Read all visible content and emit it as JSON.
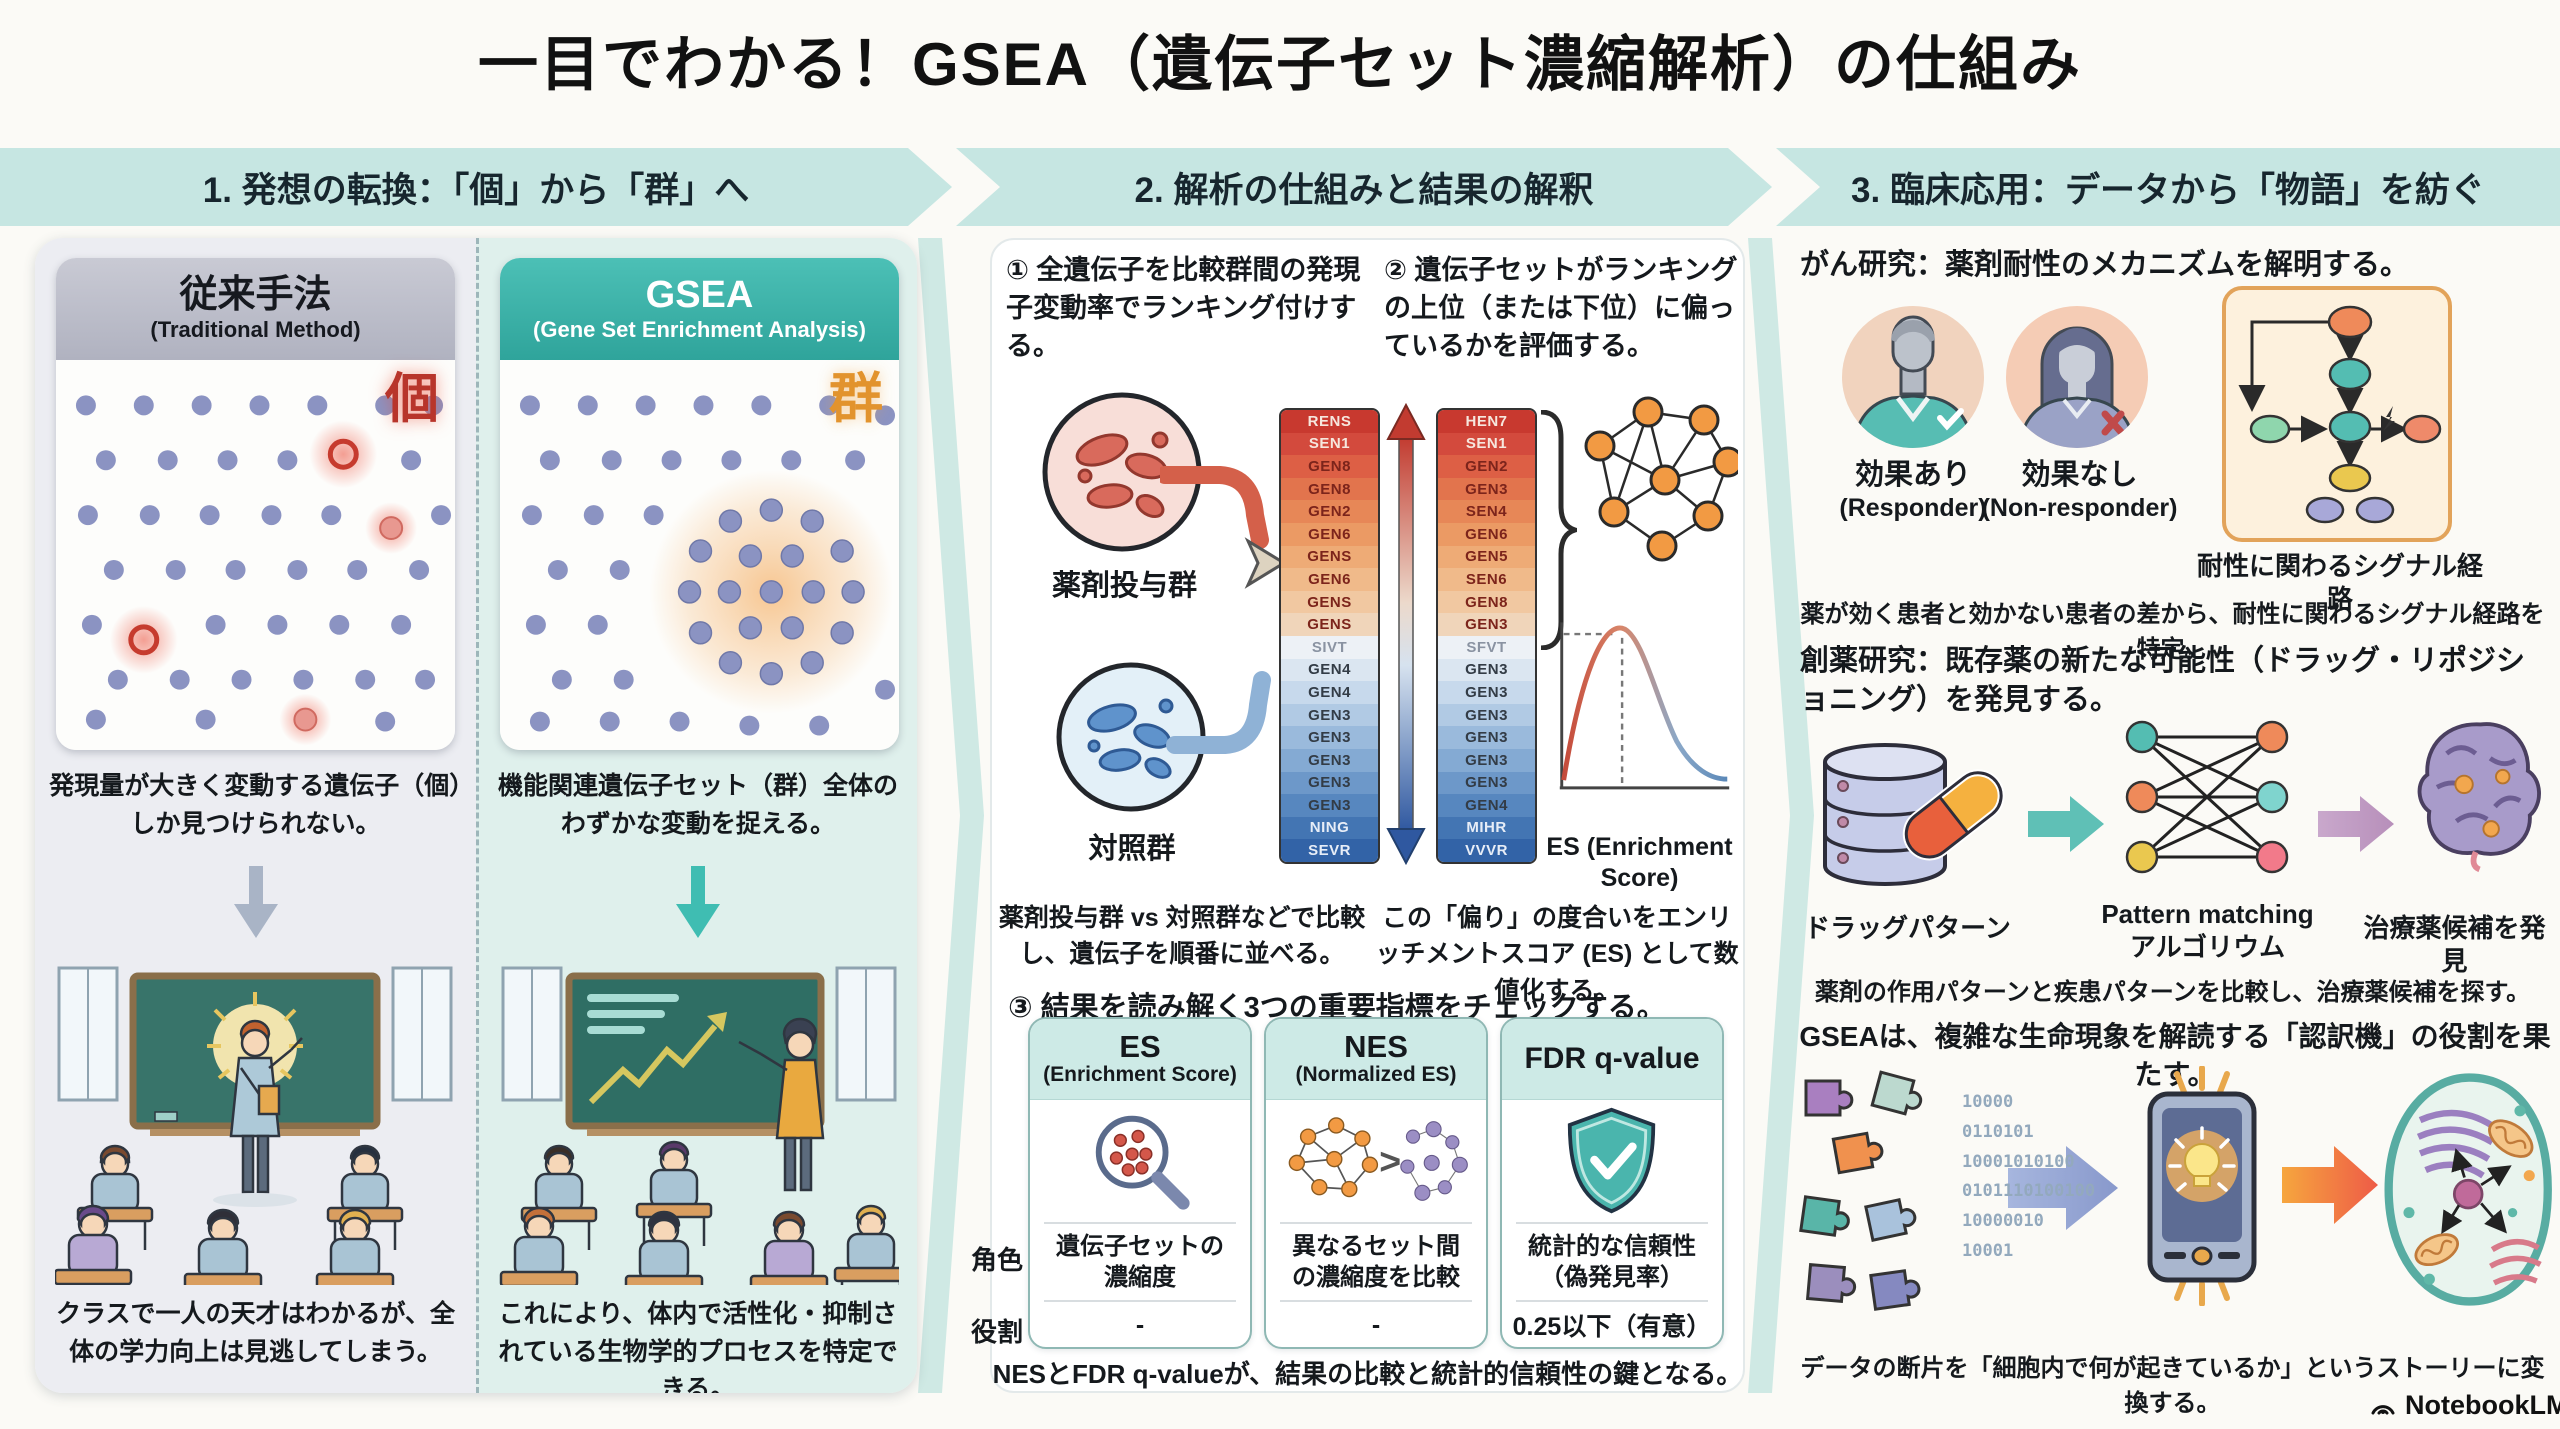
{
  "title": "一目でわかる！GSEA（遺伝子セット濃縮解析）の仕組み",
  "steps_bar": {
    "step1": "1. 発想の転換：「個」から「群」へ",
    "step2": "2. 解析の仕組みと結果の解釈",
    "step3": "3. 臨床応用：データから「物語」を紡ぐ"
  },
  "col1": {
    "traditional": {
      "title": "従来手法",
      "subtitle": "(Traditional Method)",
      "badge": "個",
      "desc": "発現量が大きく変動する遺伝子（個）しか見つけられない。",
      "caption": "クラスで一人の天才はわかるが、全体の学力向上は見逃してしまう。"
    },
    "gsea": {
      "title": "GSEA",
      "subtitle": "(Gene Set Enrichment Analysis)",
      "badge": "群",
      "desc": "機能関連遺伝子セット（群）全体のわずかな変動を捉える。",
      "caption": "これにより、体内で活性化・抑制されている生物学的プロセスを特定できる。"
    }
  },
  "col2": {
    "step1": "① 全遺伝子を比較群間の発現子変動率でランキング付けする。",
    "step2": "② 遺伝子セットがランキングの上位（または下位）に偏っているかを評価する。",
    "treated_label": "薬剤投与群",
    "control_label": "対照群",
    "ranking_left": [
      "RENS",
      "SEN1",
      "GEN8",
      "GEN8",
      "GEN2",
      "GEN6",
      "GENS",
      "GEN6",
      "GENS",
      "GENS",
      "SIVT",
      "GEN4",
      "GEN4",
      "GEN3",
      "GEN3",
      "GEN3",
      "GEN3",
      "GEN3",
      "NING",
      "SEVR"
    ],
    "ranking_right": [
      "HEN7",
      "SEN1",
      "GEN2",
      "GEN3",
      "SEN4",
      "GEN6",
      "GEN5",
      "SEN6",
      "GEN8",
      "GEN3",
      "SFVT",
      "GEN3",
      "GEN3",
      "GEN3",
      "GEN3",
      "GEN3",
      "GEN3",
      "GEN4",
      "MIHR",
      "VVVR"
    ],
    "es_label": "ES (Enrichment Score)",
    "caption1": "薬剤投与群 vs 対照群などで比較し、遺伝子を順番に並べる。",
    "caption2": "この「偏り」の度合いをエンリッチメントスコア (ES) として数値化する。",
    "step3": "③ 結果を読み解く3つの重要指標をチェックする。",
    "row_labels": {
      "desc": "角色",
      "value": "役割"
    },
    "cards": [
      {
        "title": "ES",
        "subtitle": "(Enrichment Score)",
        "desc": "遺伝子セットの濃縮度",
        "value": "-"
      },
      {
        "title": "NES",
        "subtitle": "(Normalized ES)",
        "desc": "異なるセット間の濃縮度を比較",
        "value": "-"
      },
      {
        "title": "FDR q-value",
        "subtitle": "",
        "desc": "統計的な信頼性（偽発見率）",
        "value": "0.25以下（有意）"
      }
    ],
    "bottom_note": "NESとFDR q-valueが、結果の比較と統計的信頼性の鍵となる。"
  },
  "col3": {
    "cancer_title": "がん研究：薬剤耐性のメカニズムを解明する。",
    "responder": {
      "label": "効果あり",
      "sub": "(Responder)"
    },
    "nonresponder": {
      "label": "効果なし",
      "sub": "(Non-responder)"
    },
    "pathway_label": "耐性に関わるシグナル経路",
    "cancer_caption": "薬が効く患者と効かない患者の差から、耐性に関わるシグナル経路を特定。",
    "drug_title": "創薬研究：既存薬の新たな可能性（ドラッグ・リポジショニング）を発見する。",
    "drug_pattern_label": "ドラッグパターン",
    "matching_label": "Pattern matching",
    "matching_sub": "アルゴリウム",
    "discover_label": "治療薬候補を発見",
    "drug_caption": "薬剤の作用パターンと疾患パターンを比較し、治療薬候補を探す。",
    "translator_title": "GSEAは、複雑な生命現象を解読する「認訳機」の役割を果たす。",
    "binary_lines": [
      "10000",
      "0110101",
      "10001010100",
      "0101110100100",
      "10000010",
      "10001"
    ],
    "story_caption": "データの断片を「細胞内で何が起きているか」というストーリーに変換する。"
  },
  "footer": {
    "logo_text": "NotebookLM"
  }
}
